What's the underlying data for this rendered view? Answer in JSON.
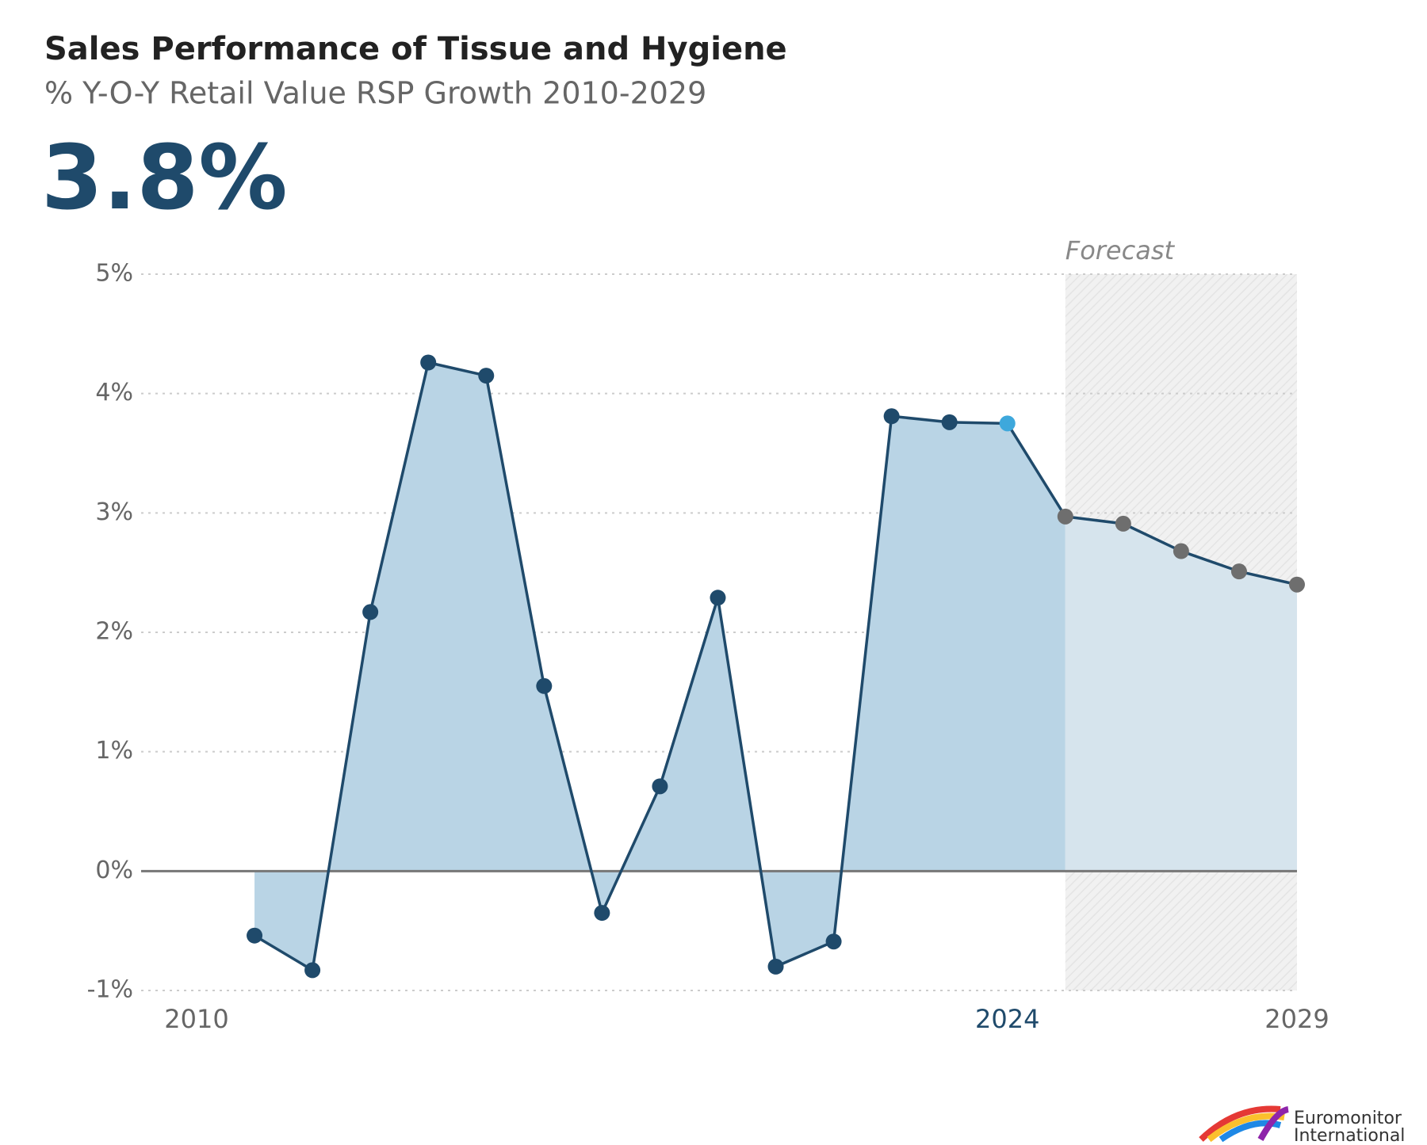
{
  "chart_data": {
    "type": "line",
    "title": "Sales Performance of Tissue and Hygiene",
    "subtitle": "% Y-O-Y Retail Value RSP Growth 2010-2029",
    "headline": "3.8%",
    "x": [
      2010,
      2011,
      2012,
      2013,
      2014,
      2015,
      2016,
      2017,
      2018,
      2019,
      2020,
      2021,
      2022,
      2023,
      2024,
      2025,
      2026,
      2027,
      2028,
      2029
    ],
    "values": [
      null,
      -0.54,
      -0.83,
      2.17,
      4.26,
      4.15,
      1.55,
      -0.35,
      0.71,
      2.29,
      -0.8,
      -0.59,
      3.81,
      3.76,
      3.75,
      2.97,
      2.91,
      2.68,
      2.51,
      2.4
    ],
    "color": "#1f4a6b",
    "area_color": "#b9d4e5",
    "forecast": {
      "label": "Forecast",
      "start": 2025,
      "end": 2029,
      "area_color": "#d6e4ed",
      "marker_color": "#6e6e6e"
    },
    "highlight": {
      "x": 2024,
      "color": "#3ea8dc"
    },
    "xlim": [
      2010,
      2029
    ],
    "xticks": [
      2010,
      2024,
      2029
    ],
    "ylim": [
      -1,
      5
    ],
    "yticks": [
      {
        "value": -1,
        "label": "-1%"
      },
      {
        "value": 0,
        "label": "0%"
      },
      {
        "value": 1,
        "label": "1%"
      },
      {
        "value": 2,
        "label": "2%"
      },
      {
        "value": 3,
        "label": "3%"
      },
      {
        "value": 4,
        "label": "4%"
      },
      {
        "value": 5,
        "label": "5%"
      }
    ],
    "grid": true,
    "logo": [
      "Euromonitor",
      "International"
    ]
  }
}
